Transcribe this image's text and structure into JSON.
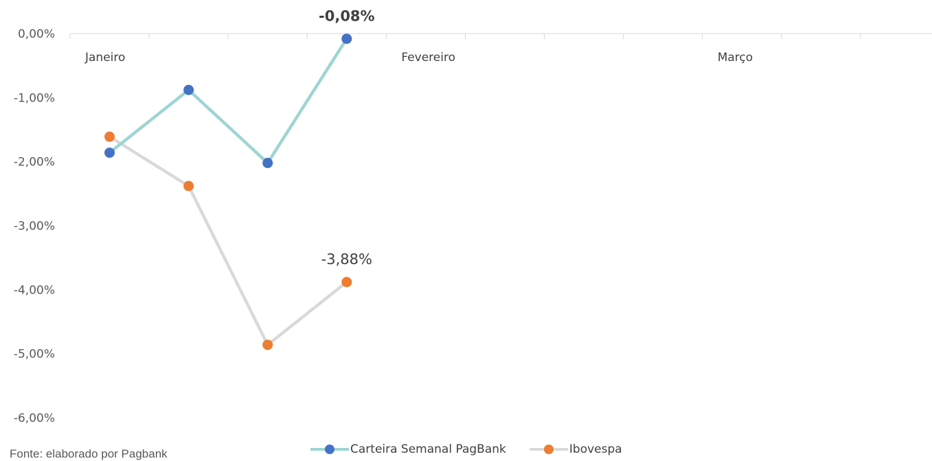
{
  "chart_data": {
    "type": "line",
    "title": "",
    "xlabel": "",
    "ylabel": "",
    "ylim": [
      -6,
      0
    ],
    "y_ticks": [
      "0,00%",
      "-1,00%",
      "-2,00%",
      "-3,00%",
      "-4,00%",
      "-5,00%",
      "-6,00%"
    ],
    "y_tick_values": [
      0,
      -1,
      -2,
      -3,
      -4,
      -5,
      -6
    ],
    "x_slot_count": 11,
    "categories": [
      "Janeiro",
      "Fevereiro",
      "Março"
    ],
    "category_start_slots": [
      0,
      4,
      8
    ],
    "grid": false,
    "legend_position": "bottom",
    "series": [
      {
        "name": "Carteira Semanal PagBank",
        "line_color": "#9dd5d3",
        "marker_color": "#4472c4",
        "x": [
          0,
          1,
          2,
          3
        ],
        "values": [
          -1.86,
          -0.88,
          -2.02,
          -0.08
        ],
        "last_label": "-0,08%"
      },
      {
        "name": "Ibovespa",
        "line_color": "#d9d9d9",
        "marker_color": "#ed7d31",
        "x": [
          0,
          1,
          2,
          3
        ],
        "values": [
          -1.61,
          -2.38,
          -4.86,
          -3.88
        ],
        "last_label": "-3,88%"
      }
    ]
  },
  "footer": {
    "source": "Fonte: elaborado por Pagbank"
  }
}
